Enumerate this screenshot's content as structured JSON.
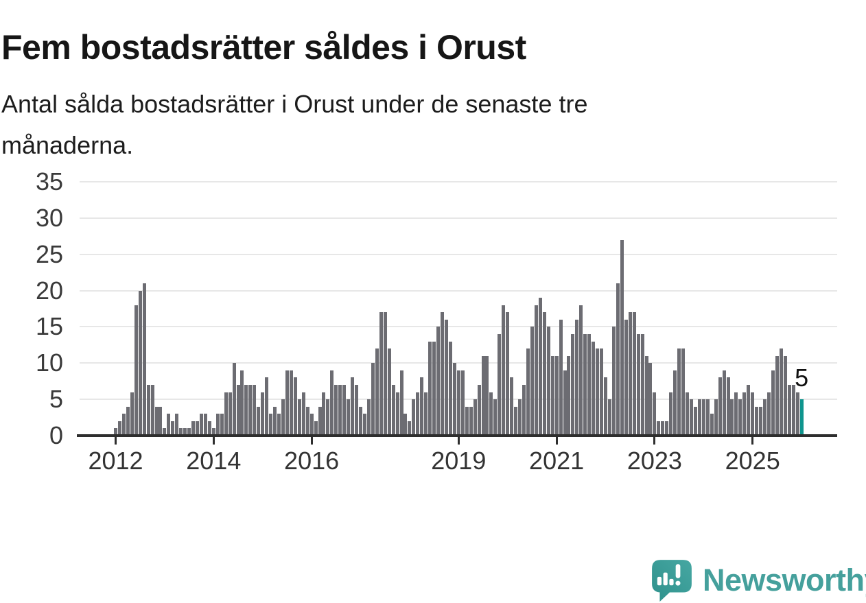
{
  "header": {
    "title": "Fem bostadsrätter såldes i Orust",
    "subtitle": "Antal sålda bostadsrätter i Orust under de senaste tre månaderna.",
    "subtitle_lines": [
      "Antal sålda bostadsrätter i Orust under de senaste tre",
      "månaderna."
    ]
  },
  "chart_data": {
    "type": "bar",
    "title": "Fem bostadsrätter såldes i Orust",
    "subtitle": "Antal sålda bostadsrätter i Orust under de senaste tre månaderna.",
    "x_start": "2012-01",
    "x_frequency": "monthly",
    "values": [
      1,
      2,
      3,
      4,
      6,
      18,
      20,
      21,
      7,
      7,
      4,
      4,
      1,
      3,
      2,
      3,
      1,
      1,
      1,
      2,
      2,
      3,
      3,
      2,
      1,
      3,
      3,
      6,
      6,
      10,
      7,
      9,
      7,
      7,
      7,
      4,
      6,
      8,
      3,
      4,
      3,
      5,
      9,
      9,
      8,
      5,
      6,
      4,
      3,
      2,
      4,
      6,
      5,
      9,
      7,
      7,
      7,
      5,
      8,
      7,
      4,
      3,
      5,
      10,
      12,
      17,
      17,
      12,
      7,
      6,
      9,
      3,
      2,
      5,
      6,
      8,
      6,
      13,
      13,
      15,
      17,
      16,
      13,
      10,
      9,
      9,
      4,
      4,
      5,
      7,
      11,
      11,
      6,
      5,
      14,
      18,
      17,
      8,
      4,
      5,
      7,
      12,
      15,
      18,
      19,
      17,
      15,
      11,
      11,
      16,
      9,
      11,
      14,
      16,
      18,
      14,
      14,
      13,
      12,
      12,
      8,
      5,
      15,
      21,
      27,
      16,
      17,
      17,
      14,
      14,
      11,
      10,
      6,
      2,
      2,
      2,
      6,
      9,
      12,
      12,
      6,
      5,
      4,
      5,
      5,
      5,
      3,
      5,
      8,
      9,
      8,
      5,
      6,
      5,
      6,
      7,
      6,
      4,
      4,
      5,
      6,
      9,
      11,
      12,
      11,
      7,
      7,
      6,
      5
    ],
    "highlight_index": 168,
    "highlight_label": "5",
    "ylim": [
      0,
      35
    ],
    "y_ticks": [
      0,
      5,
      10,
      15,
      20,
      25,
      30,
      35
    ],
    "x_ticks": [
      {
        "index": 0,
        "label": "2012"
      },
      {
        "index": 24,
        "label": "2014"
      },
      {
        "index": 48,
        "label": "2016"
      },
      {
        "index": 84,
        "label": "2019"
      },
      {
        "index": 108,
        "label": "2021"
      },
      {
        "index": 132,
        "label": "2023"
      },
      {
        "index": 156,
        "label": "2025"
      }
    ],
    "grid": true,
    "legend": false,
    "colors": {
      "bar": "#6c6c72",
      "highlight": "#0f958e",
      "grid": "#e7e7e7",
      "axis": "#2e2e2e",
      "tick_label": "#3a3a3a",
      "annotation": "#111111"
    }
  },
  "footer": {
    "logo_text": "Newsworthy",
    "logo_color": "#45a09c"
  }
}
